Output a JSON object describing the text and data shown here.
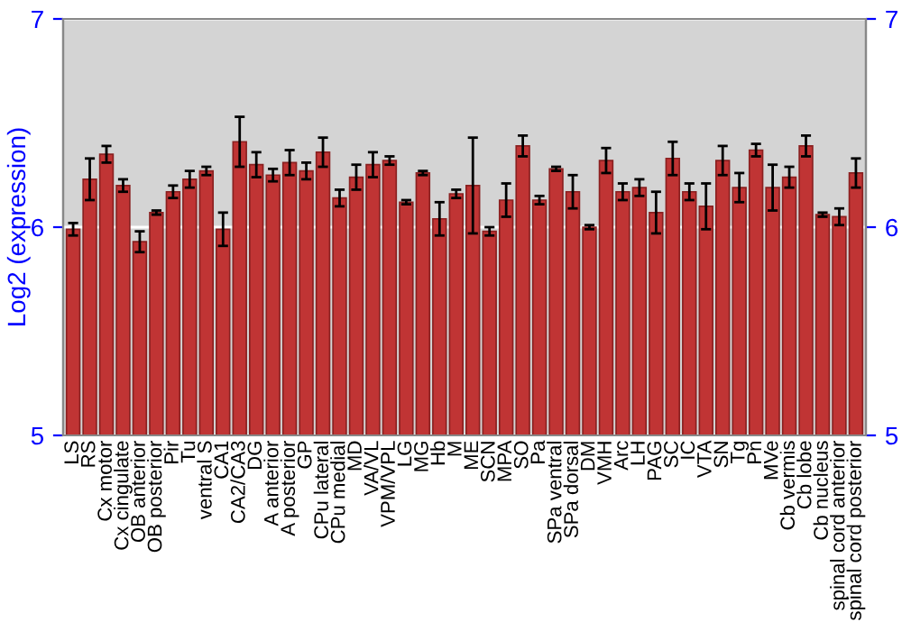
{
  "chart_data": {
    "type": "bar",
    "ylabel": "Log2 (expression)",
    "categories": [
      "LS",
      "RS",
      "Cx motor",
      "Cx cingulate",
      "OB anterior",
      "OB posterior",
      "Pir",
      "Tu",
      "ventral S",
      "CA1",
      "CA2/CA3",
      "DG",
      "A anterior",
      "A posterior",
      "GP",
      "CPu lateral",
      "CPu medial",
      "MD",
      "VA/VL",
      "VPM/VPL",
      "LG",
      "MG",
      "Hb",
      "M",
      "ME",
      "SCN",
      "MPA",
      "SO",
      "Pa",
      "SPa ventral",
      "SPa dorsal",
      "DM",
      "VMH",
      "Arc",
      "LH",
      "PAG",
      "SC",
      "IC",
      "VTA",
      "SN",
      "Tg",
      "Pn",
      "MVe",
      "Cb vermis",
      "Cb lobe",
      "Cb nucleus",
      "spinal cord anterior",
      "spinal cord posterior"
    ],
    "values": [
      5.99,
      6.23,
      6.35,
      6.2,
      5.93,
      6.07,
      6.17,
      6.23,
      6.27,
      5.99,
      6.41,
      6.3,
      6.25,
      6.31,
      6.27,
      6.36,
      6.14,
      6.24,
      6.3,
      6.32,
      6.12,
      6.26,
      6.04,
      6.16,
      6.2,
      5.98,
      6.13,
      6.39,
      6.13,
      6.28,
      6.17,
      6.0,
      6.32,
      6.17,
      6.19,
      6.07,
      6.33,
      6.17,
      6.1,
      6.32,
      6.19,
      6.37,
      6.19,
      6.24,
      6.39,
      6.06,
      6.05,
      6.26
    ],
    "errors": [
      0.03,
      0.1,
      0.04,
      0.03,
      0.05,
      0.01,
      0.03,
      0.04,
      0.02,
      0.08,
      0.12,
      0.06,
      0.03,
      0.06,
      0.04,
      0.07,
      0.04,
      0.06,
      0.06,
      0.02,
      0.01,
      0.01,
      0.08,
      0.02,
      0.23,
      0.02,
      0.08,
      0.05,
      0.02,
      0.01,
      0.08,
      0.01,
      0.06,
      0.04,
      0.04,
      0.1,
      0.08,
      0.04,
      0.11,
      0.07,
      0.07,
      0.03,
      0.11,
      0.05,
      0.05,
      0.01,
      0.04,
      0.07
    ],
    "color": "#c03434",
    "ylim": [
      5,
      7
    ],
    "yticks": [
      5,
      6,
      7
    ],
    "y2lim": [
      5,
      7
    ],
    "y2ticks": [
      5,
      6,
      7
    ],
    "grid": "y"
  }
}
